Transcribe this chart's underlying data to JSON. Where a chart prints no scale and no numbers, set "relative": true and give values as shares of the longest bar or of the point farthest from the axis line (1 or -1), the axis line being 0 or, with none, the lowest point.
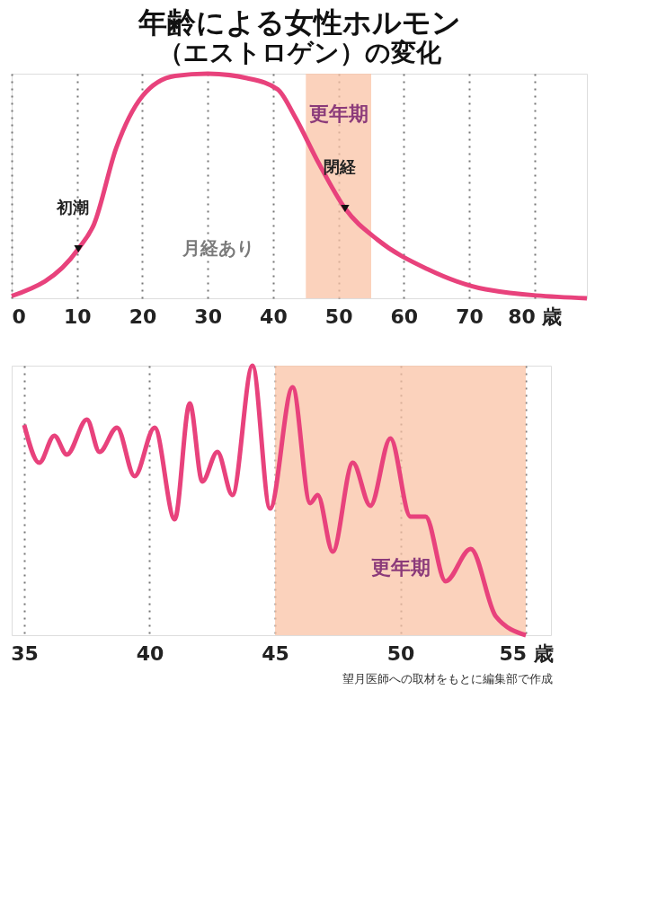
{
  "chart_data": [
    {
      "type": "line",
      "title": "年齢による女性ホルモン",
      "subtitle": "（エストロゲン）の変化",
      "relative": true,
      "grid": "x",
      "line_style": "solid",
      "marker": "none",
      "xlim": [
        0,
        88
      ],
      "xticks": [
        0,
        10,
        20,
        30,
        40,
        50,
        60,
        70,
        {
          "value": 80,
          "label": "80 歳"
        }
      ],
      "series": [
        {
          "color": "#e8427c",
          "x": [
            0,
            10.2,
            12.6,
            16,
            20,
            25,
            30,
            36,
            40.7,
            43.3,
            47,
            51,
            56,
            63.6,
            72.5,
            88
          ],
          "values": [
            0.01,
            0.22,
            0.33,
            0.67,
            0.9,
            0.99,
            1.0,
            0.98,
            0.93,
            0.81,
            0.6,
            0.4,
            0.26,
            0.13,
            0.04,
            0
          ]
        }
      ],
      "bands": [
        {
          "axis": "x",
          "from": 45,
          "to": 55,
          "label": "更年期",
          "color": "#f9c3a6"
        }
      ],
      "annotations": [
        {
          "text": "初潮",
          "x": 10.2,
          "y": 0.22
        },
        {
          "text": "閉経",
          "x": 51,
          "y": 0.4
        },
        "月経あり"
      ]
    },
    {
      "type": "line",
      "relative": true,
      "grid": "x",
      "line_style": "solid",
      "marker": "none",
      "xlim": [
        34.5,
        56
      ],
      "xticks": [
        35,
        40,
        45,
        50,
        {
          "value": 55,
          "label": "55 歳"
        }
      ],
      "series": [
        {
          "color": "#e8427c",
          "x": [
            35,
            35.6,
            36.2,
            36.7,
            37.5,
            38.0,
            38.7,
            39.4,
            40.2,
            41.0,
            41.6,
            42.1,
            42.7,
            43.3,
            44.1,
            44.8,
            45.7,
            46.4,
            46.7,
            47.3,
            48.1,
            48.8,
            49.6,
            50.4,
            51.0,
            51.8,
            52.8,
            53.8,
            55
          ],
          "values": [
            0.78,
            0.64,
            0.74,
            0.67,
            0.8,
            0.68,
            0.77,
            0.59,
            0.77,
            0.43,
            0.86,
            0.57,
            0.68,
            0.52,
            1.0,
            0.47,
            0.92,
            0.49,
            0.52,
            0.31,
            0.64,
            0.48,
            0.73,
            0.44,
            0.44,
            0.2,
            0.32,
            0.07,
            0
          ]
        }
      ],
      "bands": [
        {
          "axis": "x",
          "from": 45,
          "to": 55,
          "label": "更年期",
          "color": "#f9c3a6"
        }
      ],
      "annotations": [
        "望月医師への取材をもとに編集部で作成"
      ]
    }
  ]
}
